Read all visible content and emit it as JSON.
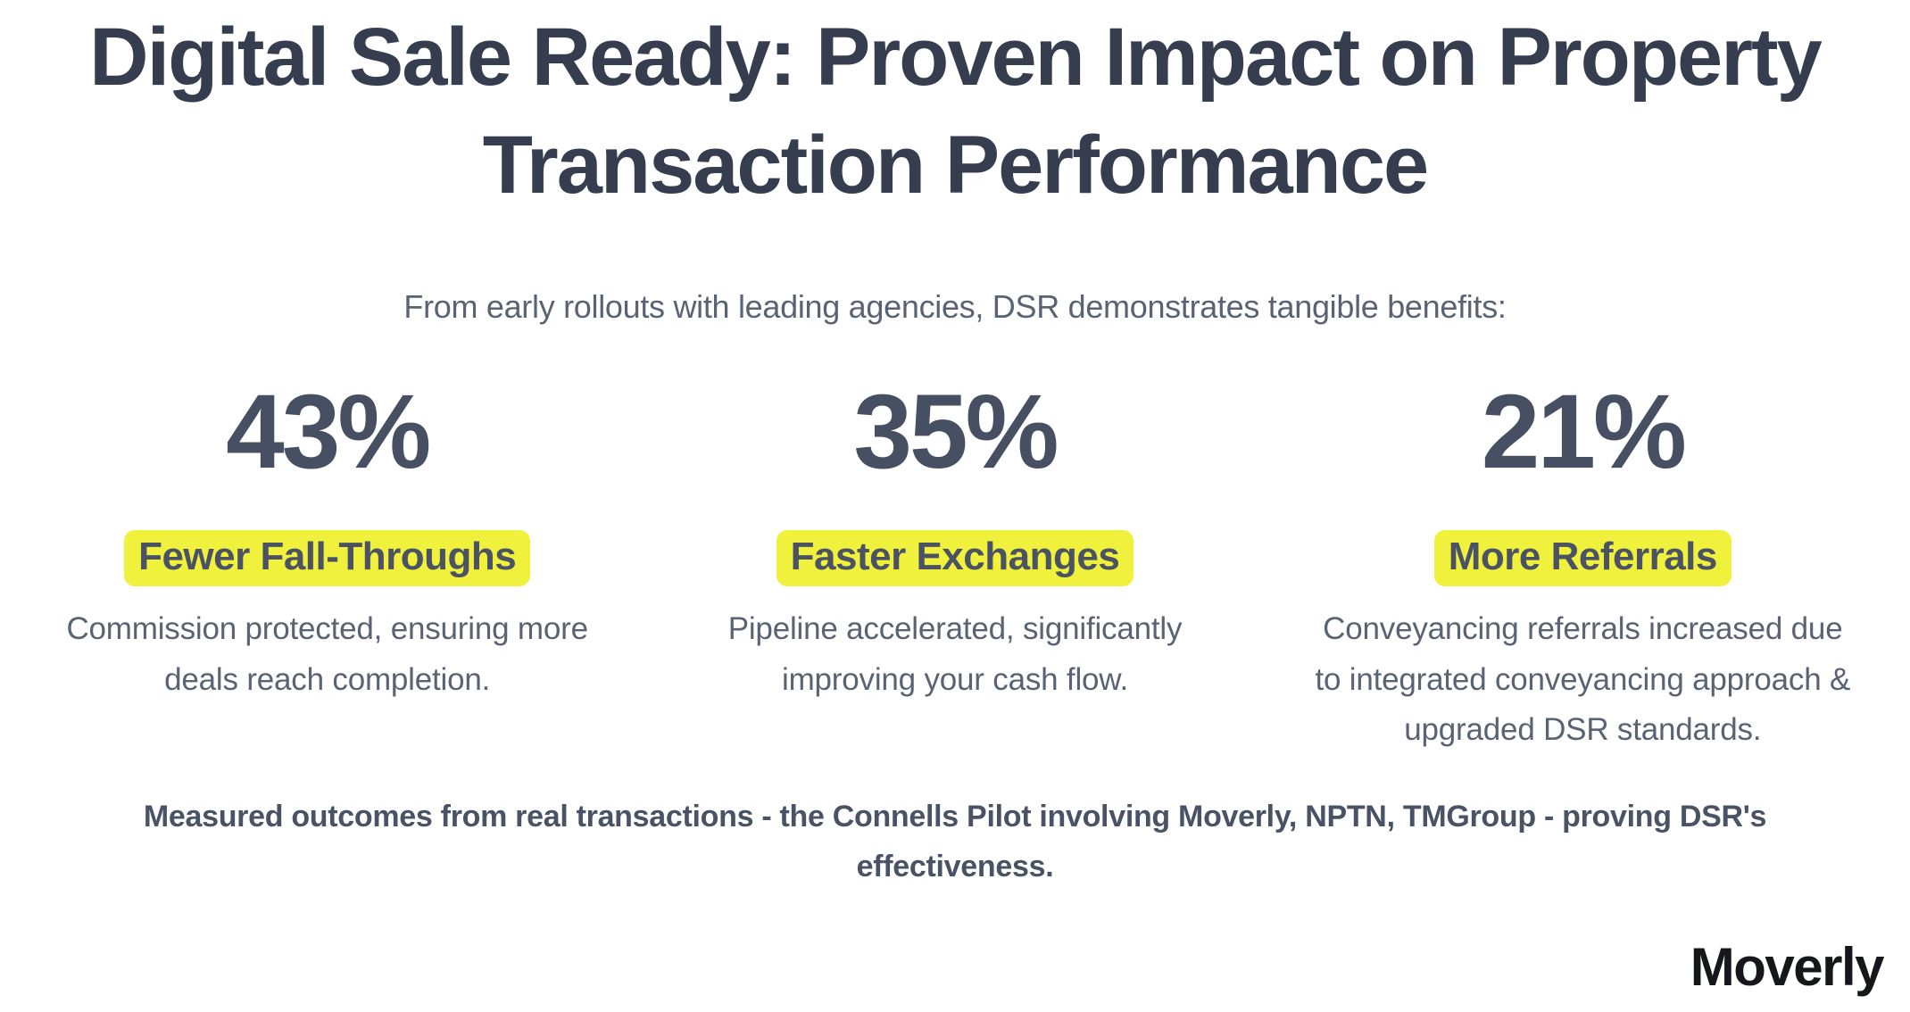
{
  "title": {
    "lines": [
      "Digital Sale Ready: Proven Impact on Property",
      "Transaction Performance"
    ]
  },
  "subtitle": "From early rollouts with leading agencies, DSR demonstrates tangible benefits:",
  "stats": [
    {
      "value": "43%",
      "label": "Fewer Fall-Throughs",
      "description_lines": [
        "Commission protected, ensuring more",
        "deals reach completion."
      ]
    },
    {
      "value": "35%",
      "label": "Faster Exchanges",
      "description_lines": [
        "Pipeline accelerated, significantly",
        "improving your cash flow."
      ]
    },
    {
      "value": "21%",
      "label": "More Referrals",
      "description_lines": [
        "Conveyancing referrals increased due",
        "to integrated conveyancing approach &",
        "upgraded DSR standards."
      ]
    }
  ],
  "footer": {
    "lines": [
      "Measured outcomes from real transactions - the Connells Pilot involving Moverly, NPTN, TMGroup - proving DSR's",
      "effectiveness."
    ]
  },
  "logo": "Moverly",
  "colors": {
    "heading": "#363d4f",
    "stat": "#474f62",
    "label": "#4a5264",
    "body": "#5a6373",
    "footer": "#4a5365",
    "highlight": "#f0f13d",
    "logo": "#15171b",
    "bg": "#ffffff"
  }
}
